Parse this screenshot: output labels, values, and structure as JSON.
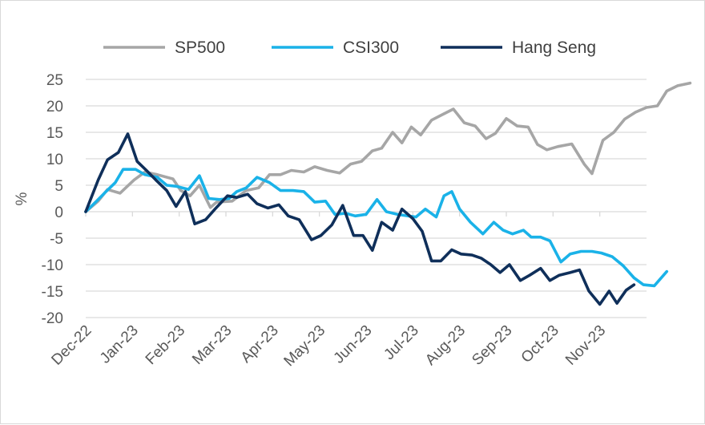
{
  "chart_data": {
    "type": "line",
    "title": "",
    "xlabel": "",
    "ylabel": "%",
    "ylim": [
      -20,
      25
    ],
    "yticks": [
      25,
      20,
      15,
      10,
      5,
      0,
      -5,
      -10,
      -15,
      -20
    ],
    "xtick_labels": [
      "Dec-22",
      "Jan-23",
      "Feb-23",
      "Mar-23",
      "Apr-23",
      "May-23",
      "Jun-23",
      "Jul-23",
      "Aug-23",
      "Sep-23",
      "Oct-23",
      "Nov-23"
    ],
    "grid": "horizontal",
    "legend_position": "top",
    "x": [
      0,
      1,
      2,
      3,
      4,
      5,
      6,
      7,
      8,
      9,
      10,
      11,
      12,
      13,
      14,
      15,
      16,
      17,
      18,
      19,
      20,
      21,
      22,
      23,
      24,
      25,
      26,
      27,
      28,
      29,
      30,
      31,
      32,
      33,
      34,
      35,
      36,
      37,
      38,
      39,
      40,
      41,
      42,
      43,
      44,
      45,
      46,
      47,
      48,
      49,
      50,
      51,
      52,
      53,
      54,
      55,
      56,
      57,
      58,
      59,
      60,
      61,
      62,
      63,
      64,
      65,
      66,
      67,
      68,
      69,
      70,
      71,
      72,
      73,
      74,
      75,
      76,
      77,
      78,
      79,
      80,
      81,
      82,
      83,
      84,
      85,
      86,
      87,
      88,
      89,
      90,
      91,
      92,
      93,
      94,
      95,
      96,
      97,
      98,
      99,
      100,
      101,
      102,
      103,
      104,
      105,
      106,
      107,
      108,
      109,
      110,
      111,
      112,
      113,
      114,
      115,
      116,
      117,
      118,
      119,
      120,
      121,
      122,
      123,
      124,
      125,
      126,
      127,
      128,
      129,
      130,
      131,
      132,
      133,
      134,
      135,
      136,
      137,
      138,
      139,
      140,
      141,
      142,
      143,
      144,
      145,
      146,
      147,
      148,
      149,
      150,
      151,
      152,
      153,
      154,
      155,
      156,
      157,
      158,
      159,
      160,
      161,
      162,
      163,
      164,
      165,
      166,
      167,
      168,
      169,
      170,
      171,
      172,
      173,
      174,
      175,
      176,
      177,
      178,
      179,
      180,
      181,
      182,
      183,
      184,
      185,
      186,
      187,
      188,
      189,
      190,
      191,
      192,
      193,
      194,
      195,
      196,
      197,
      198,
      199,
      200,
      201,
      202,
      203,
      204,
      205,
      206,
      207,
      208,
      209,
      210,
      211,
      212,
      213,
      214,
      215,
      216,
      217,
      218,
      219,
      220,
      221,
      222,
      223,
      224,
      225,
      226,
      227,
      228,
      229,
      230,
      231,
      232,
      233,
      234,
      235,
      236,
      237,
      238,
      239,
      240,
      241,
      242,
      243,
      244,
      245,
      246,
      247,
      248,
      249,
      250,
      251,
      252,
      253,
      254,
      255,
      256,
      257,
      258,
      259,
      260,
      261,
      262,
      263,
      264,
      265,
      266,
      267,
      268,
      269,
      270,
      271,
      272,
      273,
      274,
      275,
      276,
      277,
      278,
      279,
      280,
      281,
      282,
      283,
      284,
      285,
      286,
      287,
      288,
      289,
      290,
      291,
      292,
      293,
      294,
      295,
      296,
      297,
      298,
      299,
      300,
      301,
      302,
      303,
      304,
      305,
      306,
      307,
      308,
      309,
      310,
      311,
      312,
      313,
      314,
      315,
      316,
      317,
      318,
      319,
      320,
      321,
      322,
      323,
      324,
      325,
      326,
      327,
      328,
      329,
      330,
      331,
      332,
      333,
      334,
      335,
      336,
      337,
      338,
      339,
      340,
      341,
      342,
      343,
      344,
      345,
      346,
      347,
      348,
      349,
      350,
      351,
      352,
      353,
      354,
      355,
      356,
      357,
      358,
      359,
      360
    ],
    "series": [
      {
        "name": "SP500",
        "color": "#a6a6a6",
        "points": [
          [
            0,
            0
          ],
          [
            8,
            2
          ],
          [
            14,
            4.2
          ],
          [
            22,
            3.5
          ],
          [
            31,
            6
          ],
          [
            38,
            7.5
          ],
          [
            46,
            7
          ],
          [
            56,
            6.2
          ],
          [
            61,
            4
          ],
          [
            67,
            3
          ],
          [
            73,
            5
          ],
          [
            80,
            0.8
          ],
          [
            84,
            1.8
          ],
          [
            94,
            2
          ],
          [
            103,
            4
          ],
          [
            111,
            4.5
          ],
          [
            118,
            7
          ],
          [
            125,
            7
          ],
          [
            132,
            7.8
          ],
          [
            140,
            7.5
          ],
          [
            147,
            8.5
          ],
          [
            155,
            7.8
          ],
          [
            163,
            7.3
          ],
          [
            170,
            9
          ],
          [
            177,
            9.5
          ],
          [
            184,
            11.5
          ],
          [
            190,
            12
          ],
          [
            197,
            15
          ],
          [
            203,
            13
          ],
          [
            209,
            16
          ],
          [
            215,
            14.5
          ],
          [
            222,
            17.3
          ],
          [
            230,
            18.5
          ],
          [
            236,
            19.4
          ],
          [
            243,
            16.8
          ],
          [
            250,
            16.2
          ],
          [
            257,
            13.8
          ],
          [
            263,
            14.8
          ],
          [
            270,
            17.6
          ],
          [
            277,
            16.2
          ],
          [
            284,
            16
          ],
          [
            290,
            12.7
          ],
          [
            296,
            11.7
          ],
          [
            303,
            12.3
          ],
          [
            312,
            12.8
          ],
          [
            320,
            9
          ],
          [
            325,
            7.2
          ],
          [
            332,
            13.5
          ],
          [
            339,
            15
          ],
          [
            346,
            17.5
          ],
          [
            353,
            18.8
          ],
          [
            360,
            19.7
          ],
          [
            367,
            20
          ],
          [
            373,
            22.8
          ],
          [
            380,
            23.8
          ],
          [
            388,
            24.3
          ]
        ]
      },
      {
        "name": "CSI300",
        "color": "#1ab2e8",
        "points": [
          [
            0,
            0
          ],
          [
            7,
            2
          ],
          [
            13,
            3.8
          ],
          [
            19,
            5.5
          ],
          [
            24,
            8
          ],
          [
            32,
            8
          ],
          [
            38,
            7
          ],
          [
            46,
            6.5
          ],
          [
            52,
            5
          ],
          [
            58,
            4.8
          ],
          [
            66,
            4.2
          ],
          [
            73,
            6.8
          ],
          [
            79,
            2.5
          ],
          [
            86,
            2.3
          ],
          [
            92,
            2.5
          ],
          [
            97,
            3.8
          ],
          [
            103,
            4.5
          ],
          [
            110,
            6.5
          ],
          [
            118,
            5.5
          ],
          [
            125,
            4
          ],
          [
            133,
            4
          ],
          [
            140,
            3.8
          ],
          [
            147,
            1.8
          ],
          [
            154,
            2
          ],
          [
            160,
            -0.5
          ],
          [
            167,
            -0.3
          ],
          [
            173,
            -0.8
          ],
          [
            180,
            -0.5
          ],
          [
            187,
            2.3
          ],
          [
            193,
            0
          ],
          [
            200,
            -0.5
          ],
          [
            207,
            -0.8
          ],
          [
            212,
            -1
          ],
          [
            218,
            0.5
          ],
          [
            225,
            -1
          ],
          [
            230,
            3
          ],
          [
            235,
            3.8
          ],
          [
            240,
            0.5
          ],
          [
            247,
            -2
          ],
          [
            255,
            -4.2
          ],
          [
            262,
            -2
          ],
          [
            268,
            -3.5
          ],
          [
            274,
            -4.2
          ],
          [
            281,
            -3.5
          ],
          [
            286,
            -4.8
          ],
          [
            292,
            -4.8
          ],
          [
            298,
            -5.5
          ],
          [
            305,
            -9.5
          ],
          [
            311,
            -8
          ],
          [
            318,
            -7.5
          ],
          [
            325,
            -7.5
          ],
          [
            331,
            -7.8
          ],
          [
            338,
            -8.5
          ],
          [
            345,
            -10.2
          ],
          [
            352,
            -12.5
          ],
          [
            358,
            -13.8
          ],
          [
            365,
            -14
          ],
          [
            373,
            -11.3
          ]
        ]
      },
      {
        "name": "Hang Seng",
        "color": "#0f2f5a",
        "points": [
          [
            0,
            0
          ],
          [
            8,
            6
          ],
          [
            14,
            9.8
          ],
          [
            21,
            11.2
          ],
          [
            27,
            14.7
          ],
          [
            33,
            9.5
          ],
          [
            39,
            7.8
          ],
          [
            45,
            6
          ],
          [
            52,
            4
          ],
          [
            58,
            1
          ],
          [
            64,
            3.8
          ],
          [
            70,
            -2.3
          ],
          [
            77,
            -1.5
          ],
          [
            83,
            0.5
          ],
          [
            91,
            3
          ],
          [
            97,
            2.7
          ],
          [
            104,
            3.3
          ],
          [
            110,
            1.5
          ],
          [
            117,
            0.7
          ],
          [
            124,
            1.3
          ],
          [
            130,
            -0.8
          ],
          [
            137,
            -1.5
          ],
          [
            145,
            -5.3
          ],
          [
            151,
            -4.5
          ],
          [
            158,
            -2.5
          ],
          [
            165,
            1.2
          ],
          [
            172,
            -4.5
          ],
          [
            178,
            -4.5
          ],
          [
            184,
            -7.3
          ],
          [
            190,
            -2
          ],
          [
            197,
            -3.5
          ],
          [
            203,
            0.5
          ],
          [
            210,
            -1.3
          ],
          [
            216,
            -3.7
          ],
          [
            222,
            -9.3
          ],
          [
            228,
            -9.3
          ],
          [
            235,
            -7.2
          ],
          [
            241,
            -8
          ],
          [
            248,
            -8.2
          ],
          [
            254,
            -8.8
          ],
          [
            260,
            -10
          ],
          [
            266,
            -11.5
          ],
          [
            272,
            -10
          ],
          [
            279,
            -13
          ],
          [
            285,
            -12
          ],
          [
            292,
            -10.7
          ],
          [
            298,
            -13
          ],
          [
            304,
            -12
          ],
          [
            311,
            -11.5
          ],
          [
            317,
            -11
          ],
          [
            323,
            -15
          ],
          [
            330,
            -17.5
          ],
          [
            336,
            -15
          ],
          [
            341,
            -17.3
          ],
          [
            347,
            -14.8
          ],
          [
            352,
            -13.8
          ]
        ]
      }
    ]
  }
}
